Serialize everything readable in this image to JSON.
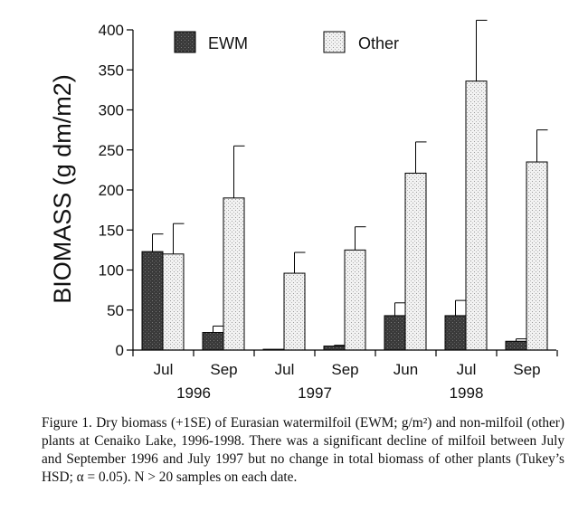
{
  "chart_data": {
    "type": "bar",
    "ylabel": "BIOMASS (g dm/m2)",
    "ylim": [
      0,
      400
    ],
    "yticks": [
      0,
      50,
      100,
      150,
      200,
      250,
      300,
      350,
      400
    ],
    "categories": [
      "Jul",
      "Sep",
      "Jul",
      "Sep",
      "Jun",
      "Jul",
      "Sep"
    ],
    "years": [
      {
        "label": "1996",
        "from": 0,
        "to": 1
      },
      {
        "label": "1997",
        "from": 2,
        "to": 3
      },
      {
        "label": "1998",
        "from": 4,
        "to": 6
      }
    ],
    "legend_position": "top",
    "error_bars": "+1SE",
    "series": [
      {
        "name": "EWM",
        "pattern": "dark-stipple",
        "values": [
          123,
          22,
          1,
          5,
          43,
          43,
          11
        ],
        "se": [
          22,
          8,
          0,
          1,
          16,
          19,
          3
        ]
      },
      {
        "name": "Other",
        "pattern": "light-stipple",
        "values": [
          120,
          190,
          96,
          125,
          221,
          336,
          235
        ],
        "se": [
          38,
          65,
          26,
          29,
          39,
          76,
          40
        ]
      }
    ]
  },
  "caption": "Figure 1. Dry biomass (+1SE) of Eurasian watermilfoil (EWM; g/m²) and non-milfoil (other) plants at Cenaiko Lake, 1996-1998. There was a significant decline of milfoil between July and September 1996 and July 1997 but no change in total biomass of other plants (Tukey’s HSD; α = 0.05). N > 20 samples on each date."
}
